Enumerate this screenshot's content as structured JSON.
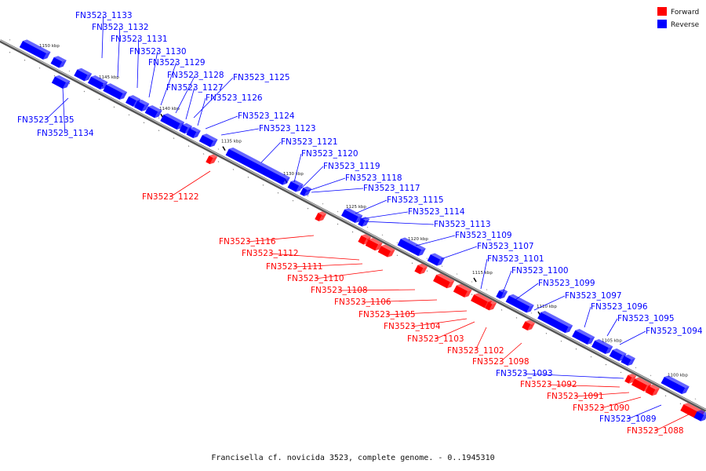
{
  "footer": "Francisella cf. novicida 3523, complete genome. - 0..1945310",
  "legend": [
    {
      "label": "Forward",
      "color": "#ff0000"
    },
    {
      "label": "Reverse",
      "color": "#0000ff"
    }
  ],
  "colors": {
    "forward": "#ff0000",
    "reverse": "#0000ff",
    "backbone": "#666666"
  },
  "tick_labels": [
    "1150 kbp",
    "1145 kbp",
    "1140 kbp",
    "1135 kbp",
    "1130 kbp",
    "1125 kbp",
    "1120 kbp",
    "1115 kbp",
    "1110 kbp",
    "1105 kbp",
    "1100 kbp"
  ],
  "genes": [
    {
      "name": "FN3523_1133",
      "strand": "reverse"
    },
    {
      "name": "FN3523_1132",
      "strand": "reverse"
    },
    {
      "name": "FN3523_1131",
      "strand": "reverse"
    },
    {
      "name": "FN3523_1130",
      "strand": "reverse"
    },
    {
      "name": "FN3523_1129",
      "strand": "reverse"
    },
    {
      "name": "FN3523_1128",
      "strand": "reverse"
    },
    {
      "name": "FN3523_1127",
      "strand": "reverse"
    },
    {
      "name": "FN3523_1126",
      "strand": "reverse"
    },
    {
      "name": "FN3523_1125",
      "strand": "reverse"
    },
    {
      "name": "FN3523_1124",
      "strand": "reverse"
    },
    {
      "name": "FN3523_1123",
      "strand": "reverse"
    },
    {
      "name": "FN3523_1121",
      "strand": "reverse"
    },
    {
      "name": "FN3523_1120",
      "strand": "reverse"
    },
    {
      "name": "FN3523_1119",
      "strand": "reverse"
    },
    {
      "name": "FN3523_1118",
      "strand": "reverse"
    },
    {
      "name": "FN3523_1117",
      "strand": "reverse"
    },
    {
      "name": "FN3523_1115",
      "strand": "reverse"
    },
    {
      "name": "FN3523_1114",
      "strand": "reverse"
    },
    {
      "name": "FN3523_1113",
      "strand": "reverse"
    },
    {
      "name": "FN3523_1109",
      "strand": "reverse"
    },
    {
      "name": "FN3523_1107",
      "strand": "reverse"
    },
    {
      "name": "FN3523_1101",
      "strand": "reverse"
    },
    {
      "name": "FN3523_1100",
      "strand": "reverse"
    },
    {
      "name": "FN3523_1099",
      "strand": "reverse"
    },
    {
      "name": "FN3523_1097",
      "strand": "reverse"
    },
    {
      "name": "FN3523_1096",
      "strand": "reverse"
    },
    {
      "name": "FN3523_1095",
      "strand": "reverse"
    },
    {
      "name": "FN3523_1094",
      "strand": "reverse"
    },
    {
      "name": "FN3523_1093",
      "strand": "reverse"
    },
    {
      "name": "FN3523_1089",
      "strand": "reverse"
    },
    {
      "name": "FN3523_1135",
      "strand": "reverse"
    },
    {
      "name": "FN3523_1134",
      "strand": "reverse"
    },
    {
      "name": "FN3523_1122",
      "strand": "forward"
    },
    {
      "name": "FN3523_1116",
      "strand": "forward"
    },
    {
      "name": "FN3523_1112",
      "strand": "forward"
    },
    {
      "name": "FN3523_1111",
      "strand": "forward"
    },
    {
      "name": "FN3523_1110",
      "strand": "forward"
    },
    {
      "name": "FN3523_1108",
      "strand": "forward"
    },
    {
      "name": "FN3523_1106",
      "strand": "forward"
    },
    {
      "name": "FN3523_1105",
      "strand": "forward"
    },
    {
      "name": "FN3523_1104",
      "strand": "forward"
    },
    {
      "name": "FN3523_1103",
      "strand": "forward"
    },
    {
      "name": "FN3523_1102",
      "strand": "forward"
    },
    {
      "name": "FN3523_1098",
      "strand": "forward"
    },
    {
      "name": "FN3523_1092",
      "strand": "forward"
    },
    {
      "name": "FN3523_1091",
      "strand": "forward"
    },
    {
      "name": "FN3523_1090",
      "strand": "forward"
    },
    {
      "name": "FN3523_1088",
      "strand": "forward"
    }
  ]
}
